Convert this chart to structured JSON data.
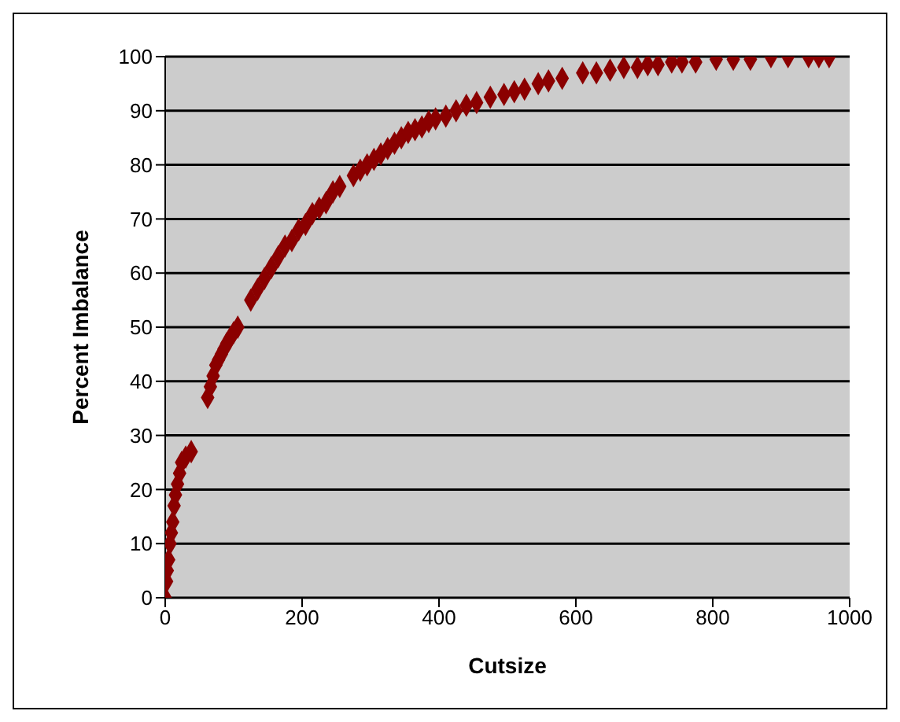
{
  "chart_data": {
    "type": "scatter",
    "xlabel": "Cutsize",
    "ylabel": "Percent Imbalance",
    "x": [
      0,
      2,
      3,
      5,
      7,
      9,
      11,
      13,
      15,
      18,
      21,
      24,
      30,
      38,
      62,
      66,
      70,
      74,
      78,
      82,
      86,
      90,
      95,
      100,
      106,
      125,
      135,
      145,
      155,
      165,
      175,
      185,
      195,
      205,
      215,
      225,
      235,
      245,
      255,
      275,
      285,
      295,
      305,
      315,
      325,
      335,
      345,
      355,
      365,
      375,
      385,
      395,
      410,
      425,
      440,
      455,
      475,
      495,
      510,
      525,
      545,
      560,
      580,
      610,
      630,
      650,
      670,
      690,
      705,
      720,
      740,
      755,
      775,
      805,
      830,
      855,
      885,
      910,
      940,
      955,
      970
    ],
    "series": [
      {
        "color": "#8b0000",
        "values": [
          0,
          3,
          5,
          7,
          10,
          12,
          14,
          17,
          19,
          21,
          23,
          25,
          26,
          27,
          37,
          39,
          41,
          43,
          44,
          45,
          46,
          47,
          48,
          49,
          50,
          55,
          57,
          59,
          61,
          63,
          65,
          66,
          68,
          69,
          71,
          72,
          73,
          75,
          76,
          78,
          79,
          80,
          81,
          82,
          83,
          84,
          85,
          86,
          86.5,
          87,
          88,
          88.5,
          89,
          90,
          91,
          91.5,
          92.5,
          93,
          93.5,
          94,
          95,
          95.5,
          96,
          97,
          97,
          97.5,
          98,
          98,
          98.5,
          98.5,
          99,
          99,
          99,
          99.5,
          99.5,
          99.5,
          100,
          100,
          100,
          100,
          100
        ]
      }
    ],
    "xlim": [
      0,
      1000
    ],
    "xticks": [
      0,
      200,
      400,
      600,
      800,
      1000
    ],
    "ylim": [
      0,
      100
    ],
    "yticks": [
      0,
      10,
      20,
      30,
      40,
      50,
      60,
      70,
      80,
      90,
      100
    ],
    "grid": "y",
    "marker": "diamond"
  }
}
